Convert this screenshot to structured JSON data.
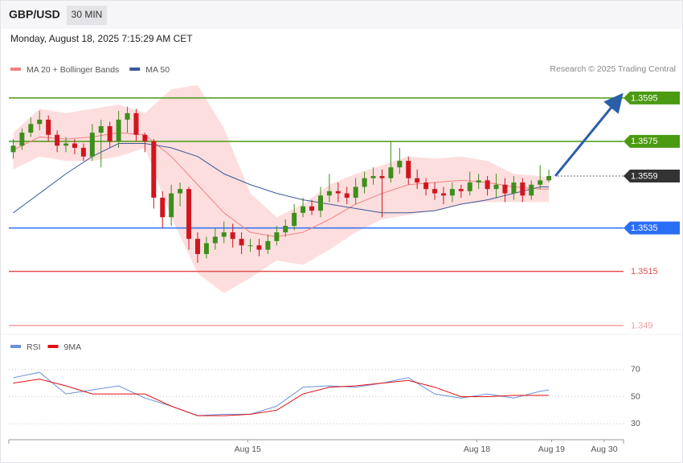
{
  "header": {
    "symbol": "GBP/USD",
    "timeframe": "30 MIN",
    "timestamp": "Monday, August 18, 2025 7:15:29 AM CET",
    "credit": "Research © 2025 Trading Central"
  },
  "chart_data": [
    {
      "type": "candlestick",
      "up_color": "#3d8f1c",
      "down_color": "#d0161f",
      "xlim": [
        0,
        70
      ],
      "ylim": [
        1.3485,
        1.3625
      ],
      "open": [
        1.357,
        1.3573,
        1.3579,
        1.3583,
        1.3585,
        1.3578,
        1.3573,
        1.3574,
        1.3572,
        1.3568,
        1.3579,
        1.3582,
        1.3575,
        1.3585,
        1.3588,
        1.3578,
        1.3575,
        1.3549,
        1.354,
        1.3551,
        1.3553,
        1.353,
        1.3523,
        1.3528,
        1.3531,
        1.3533,
        1.353,
        1.3527,
        1.3527,
        1.3525,
        1.3529,
        1.3533,
        1.3536,
        1.3542,
        1.3545,
        1.3543,
        1.355,
        1.3552,
        1.3551,
        1.3549,
        1.3554,
        1.3558,
        1.3559,
        1.3558,
        1.3563,
        1.3566,
        1.3558,
        1.3556,
        1.3553,
        1.3551,
        1.355,
        1.3553,
        1.3552,
        1.3556,
        1.3557,
        1.3553,
        1.3555,
        1.3551,
        1.3556,
        1.355,
        1.3555,
        1.3557
      ],
      "high": [
        1.3576,
        1.3581,
        1.3586,
        1.3589,
        1.3587,
        1.358,
        1.3577,
        1.3576,
        1.3574,
        1.3583,
        1.3585,
        1.3584,
        1.3589,
        1.3591,
        1.359,
        1.3579,
        1.3576,
        1.3552,
        1.3555,
        1.3556,
        1.3554,
        1.3533,
        1.3531,
        1.3535,
        1.3538,
        1.3537,
        1.3533,
        1.353,
        1.353,
        1.3532,
        1.3536,
        1.3539,
        1.3546,
        1.3549,
        1.3548,
        1.3554,
        1.356,
        1.3556,
        1.3554,
        1.3558,
        1.3561,
        1.3563,
        1.3562,
        1.3575,
        1.3572,
        1.3568,
        1.3562,
        1.3558,
        1.3556,
        1.3554,
        1.3556,
        1.3555,
        1.3561,
        1.356,
        1.3559,
        1.356,
        1.3558,
        1.3559,
        1.3558,
        1.3557,
        1.3564,
        1.3562
      ],
      "low": [
        1.3567,
        1.3571,
        1.3577,
        1.358,
        1.3575,
        1.357,
        1.357,
        1.3569,
        1.3566,
        1.3566,
        1.3563,
        1.3572,
        1.3572,
        1.3579,
        1.3575,
        1.357,
        1.3544,
        1.3535,
        1.3536,
        1.3545,
        1.3525,
        1.3519,
        1.3521,
        1.3525,
        1.3528,
        1.3526,
        1.3523,
        1.3524,
        1.3522,
        1.3523,
        1.3527,
        1.3531,
        1.3534,
        1.354,
        1.3541,
        1.354,
        1.3547,
        1.3547,
        1.3546,
        1.3546,
        1.3551,
        1.3555,
        1.354,
        1.3556,
        1.356,
        1.3555,
        1.3553,
        1.355,
        1.3548,
        1.3546,
        1.3547,
        1.3549,
        1.355,
        1.3553,
        1.355,
        1.3549,
        1.3547,
        1.3548,
        1.3547,
        1.3548,
        1.3553,
        1.3556
      ],
      "close": [
        1.3573,
        1.3579,
        1.3583,
        1.3585,
        1.3578,
        1.3573,
        1.3574,
        1.3572,
        1.3568,
        1.3579,
        1.3582,
        1.3575,
        1.3585,
        1.3588,
        1.3578,
        1.3575,
        1.3549,
        1.354,
        1.3551,
        1.3553,
        1.353,
        1.3523,
        1.3528,
        1.3531,
        1.3533,
        1.353,
        1.3527,
        1.3527,
        1.3525,
        1.3529,
        1.3533,
        1.3536,
        1.3542,
        1.3545,
        1.3543,
        1.355,
        1.3552,
        1.3551,
        1.3549,
        1.3554,
        1.3558,
        1.3559,
        1.3558,
        1.3563,
        1.3566,
        1.3558,
        1.3556,
        1.3553,
        1.3551,
        1.355,
        1.3553,
        1.3552,
        1.3556,
        1.3557,
        1.3553,
        1.3555,
        1.3551,
        1.3556,
        1.355,
        1.3555,
        1.3557,
        1.3559
      ],
      "overlays": {
        "x": [
          0,
          3,
          6,
          9,
          12,
          15,
          18,
          21,
          24,
          27,
          30,
          33,
          36,
          39,
          42,
          45,
          48,
          51,
          54,
          57,
          60,
          61
        ],
        "series": [
          {
            "name": "MA 20 + Bollinger Bands",
            "color": "#f08080",
            "band_color": "#fddede",
            "values": [
              1.3571,
              1.3577,
              1.3576,
              1.3577,
              1.3579,
              1.3578,
              1.3568,
              1.3555,
              1.3542,
              1.3533,
              1.3531,
              1.3533,
              1.3539,
              1.3546,
              1.3551,
              1.3555,
              1.3556,
              1.3557,
              1.3556,
              1.3554,
              1.3553,
              1.3553
            ],
            "upper": [
              1.3579,
              1.359,
              1.3588,
              1.359,
              1.3592,
              1.3588,
              1.3599,
              1.3601,
              1.3581,
              1.3551,
              1.354,
              1.3546,
              1.3555,
              1.356,
              1.3564,
              1.3568,
              1.3567,
              1.3568,
              1.3566,
              1.356,
              1.3559,
              1.3558
            ],
            "lower": [
              1.3562,
              1.3568,
              1.3566,
              1.3566,
              1.3568,
              1.3572,
              1.354,
              1.3514,
              1.3505,
              1.3512,
              1.352,
              1.3518,
              1.3525,
              1.3533,
              1.3539,
              1.3541,
              1.3543,
              1.3546,
              1.3547,
              1.3547,
              1.3547,
              1.3547
            ]
          },
          {
            "name": "MA 50",
            "color": "#3a5a9a",
            "values": [
              1.3542,
              1.3551,
              1.356,
              1.3568,
              1.3574,
              1.3574,
              1.3572,
              1.3568,
              1.356,
              1.3555,
              1.3551,
              1.3548,
              1.3546,
              1.3544,
              1.3542,
              1.3542,
              1.3543,
              1.3546,
              1.3548,
              1.3551,
              1.3554,
              1.3554
            ]
          }
        ]
      },
      "levels": [
        {
          "value": 1.3595,
          "color": "#4a9a12",
          "style": "solid",
          "box": true
        },
        {
          "value": 1.3575,
          "color": "#4a9a12",
          "style": "solid",
          "box": true
        },
        {
          "value": 1.3559,
          "color": "#333333",
          "style": "dotted",
          "box": true
        },
        {
          "value": 1.3535,
          "color": "#2a6ef5",
          "style": "solid",
          "box": true
        },
        {
          "value": 1.3515,
          "color": "#e05050",
          "style": "solid",
          "box": false
        },
        {
          "value": 1.349,
          "color": "#f0a0a0",
          "style": "solid",
          "box": false
        }
      ],
      "arrow_color": "#2a5ea8"
    },
    {
      "type": "line",
      "xlim": [
        0,
        70
      ],
      "ylim": [
        20,
        80
      ],
      "yticks": [
        70,
        50,
        30
      ],
      "grid": true,
      "x": [
        0,
        3,
        6,
        9,
        12,
        15,
        18,
        21,
        24,
        27,
        30,
        33,
        36,
        39,
        42,
        45,
        48,
        51,
        54,
        57,
        60,
        61
      ],
      "xticks": [
        {
          "value": 27.2,
          "label": "Aug 15"
        },
        {
          "value": 53.3,
          "label": "Aug 18"
        },
        {
          "value": 61.8,
          "label": "Aug 19"
        },
        {
          "value": 67.8,
          "label": "Aug 30"
        }
      ],
      "series": [
        {
          "name": "RSI",
          "color": "#6a8ee0",
          "values": [
            64,
            68,
            52,
            55,
            58,
            49,
            43,
            36,
            37,
            37,
            43,
            57,
            58,
            57,
            60,
            64,
            52,
            49,
            52,
            49,
            54,
            55
          ]
        },
        {
          "name": "9MA",
          "color": "#e01010",
          "values": [
            60,
            63,
            58,
            52,
            52,
            52,
            43,
            36,
            36,
            37,
            40,
            52,
            57,
            58,
            60,
            62,
            57,
            50,
            50,
            51,
            51,
            51
          ]
        }
      ]
    }
  ]
}
